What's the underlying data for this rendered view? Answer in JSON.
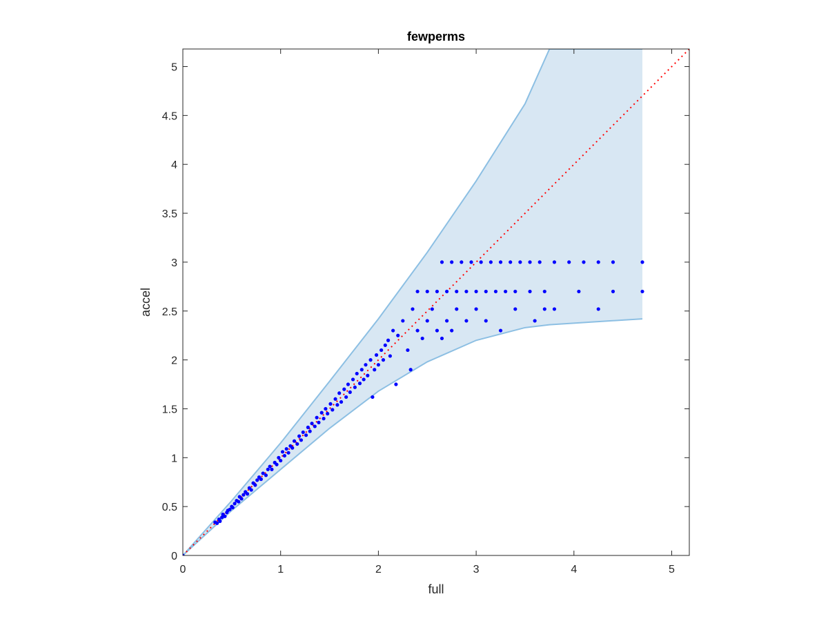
{
  "chart_data": {
    "type": "scatter",
    "title": "fewperms",
    "xlabel": "full",
    "ylabel": "accel",
    "xlim": [
      0,
      5.18
    ],
    "ylim": [
      0,
      5.18
    ],
    "xticks": [
      0,
      1,
      2,
      3,
      4,
      5
    ],
    "yticks": [
      0,
      0.5,
      1,
      1.5,
      2,
      2.5,
      3,
      3.5,
      4,
      4.5,
      5
    ],
    "xtick_labels": [
      "0",
      "1",
      "2",
      "3",
      "4",
      "5"
    ],
    "ytick_labels": [
      "0",
      "0.5",
      "1",
      "1.5",
      "2",
      "2.5",
      "3",
      "3.5",
      "4",
      "4.5",
      "5"
    ],
    "grid": false,
    "box": true,
    "colors": {
      "points": "#0000ff",
      "band_fill": "#d8e7f3",
      "band_edge": "#8cbfe3",
      "reference": "#ff0000",
      "axes": "#262626"
    },
    "reference_line": {
      "x": [
        0,
        5.18
      ],
      "y": [
        0,
        5.18
      ],
      "style": "dotted"
    },
    "band": {
      "x": [
        0,
        0.5,
        1,
        1.5,
        2,
        2.5,
        3,
        3.5,
        3.75,
        4.7
      ],
      "upper": [
        0,
        0.56,
        1.15,
        1.78,
        2.42,
        3.1,
        3.83,
        4.62,
        5.18,
        5.18
      ],
      "lower": [
        0,
        0.46,
        0.88,
        1.3,
        1.68,
        1.98,
        2.2,
        2.33,
        2.36,
        2.42
      ]
    },
    "series": [
      {
        "points": [
          [
            0,
            0
          ],
          [
            0.33,
            0.34
          ],
          [
            0.35,
            0.33
          ],
          [
            0.37,
            0.37
          ],
          [
            0.38,
            0.35
          ],
          [
            0.4,
            0.39
          ],
          [
            0.41,
            0.42
          ],
          [
            0.43,
            0.4
          ],
          [
            0.45,
            0.44
          ],
          [
            0.46,
            0.46
          ],
          [
            0.48,
            0.47
          ],
          [
            0.5,
            0.5
          ],
          [
            0.51,
            0.49
          ],
          [
            0.53,
            0.53
          ],
          [
            0.55,
            0.56
          ],
          [
            0.57,
            0.55
          ],
          [
            0.58,
            0.6
          ],
          [
            0.6,
            0.58
          ],
          [
            0.62,
            0.62
          ],
          [
            0.64,
            0.65
          ],
          [
            0.66,
            0.63
          ],
          [
            0.68,
            0.69
          ],
          [
            0.7,
            0.67
          ],
          [
            0.72,
            0.74
          ],
          [
            0.74,
            0.72
          ],
          [
            0.76,
            0.77
          ],
          [
            0.78,
            0.8
          ],
          [
            0.8,
            0.78
          ],
          [
            0.82,
            0.84
          ],
          [
            0.85,
            0.82
          ],
          [
            0.87,
            0.88
          ],
          [
            0.89,
            0.91
          ],
          [
            0.91,
            0.88
          ],
          [
            0.94,
            0.95
          ],
          [
            0.96,
            0.93
          ],
          [
            0.98,
            1.0
          ],
          [
            1.0,
            0.97
          ],
          [
            1.02,
            1.06
          ],
          [
            1.04,
            1.02
          ],
          [
            1.06,
            1.09
          ],
          [
            1.08,
            1.05
          ],
          [
            1.1,
            1.12
          ],
          [
            1.12,
            1.1
          ],
          [
            1.14,
            1.17
          ],
          [
            1.17,
            1.14
          ],
          [
            1.19,
            1.22
          ],
          [
            1.21,
            1.18
          ],
          [
            1.23,
            1.26
          ],
          [
            1.26,
            1.23
          ],
          [
            1.28,
            1.31
          ],
          [
            1.3,
            1.27
          ],
          [
            1.32,
            1.35
          ],
          [
            1.35,
            1.32
          ],
          [
            1.37,
            1.41
          ],
          [
            1.39,
            1.36
          ],
          [
            1.42,
            1.46
          ],
          [
            1.44,
            1.4
          ],
          [
            1.46,
            1.5
          ],
          [
            1.48,
            1.45
          ],
          [
            1.51,
            1.55
          ],
          [
            1.53,
            1.49
          ],
          [
            1.56,
            1.6
          ],
          [
            1.58,
            1.54
          ],
          [
            1.6,
            1.66
          ],
          [
            1.62,
            1.57
          ],
          [
            1.65,
            1.7
          ],
          [
            1.67,
            1.62
          ],
          [
            1.69,
            1.75
          ],
          [
            1.71,
            1.67
          ],
          [
            1.74,
            1.8
          ],
          [
            1.76,
            1.72
          ],
          [
            1.78,
            1.86
          ],
          [
            1.81,
            1.76
          ],
          [
            1.83,
            1.9
          ],
          [
            1.85,
            1.8
          ],
          [
            1.87,
            1.95
          ],
          [
            1.89,
            1.84
          ],
          [
            1.92,
            2.0
          ],
          [
            1.94,
            1.62
          ],
          [
            1.96,
            1.9
          ],
          [
            1.98,
            2.05
          ],
          [
            2.0,
            1.95
          ],
          [
            2.03,
            2.1
          ],
          [
            2.05,
            2.0
          ],
          [
            2.07,
            2.15
          ],
          [
            2.1,
            2.2
          ],
          [
            2.12,
            2.04
          ],
          [
            2.15,
            2.3
          ],
          [
            2.18,
            1.75
          ],
          [
            2.2,
            2.25
          ],
          [
            2.25,
            2.4
          ],
          [
            2.3,
            2.1
          ],
          [
            2.33,
            1.9
          ],
          [
            2.35,
            2.52
          ],
          [
            2.4,
            2.3
          ],
          [
            2.45,
            2.22
          ],
          [
            2.5,
            2.4
          ],
          [
            2.55,
            2.52
          ],
          [
            2.6,
            2.3
          ],
          [
            2.65,
            2.22
          ],
          [
            2.7,
            2.4
          ],
          [
            2.75,
            2.3
          ],
          [
            2.8,
            2.52
          ],
          [
            2.9,
            2.4
          ],
          [
            3.0,
            2.52
          ],
          [
            3.1,
            2.4
          ],
          [
            3.25,
            2.3
          ],
          [
            3.4,
            2.52
          ],
          [
            2.4,
            2.7
          ],
          [
            2.5,
            2.7
          ],
          [
            2.6,
            2.7
          ],
          [
            2.7,
            2.7
          ],
          [
            2.8,
            2.7
          ],
          [
            2.9,
            2.7
          ],
          [
            3.0,
            2.7
          ],
          [
            3.1,
            2.7
          ],
          [
            3.2,
            2.7
          ],
          [
            3.3,
            2.7
          ],
          [
            3.4,
            2.7
          ],
          [
            3.55,
            2.7
          ],
          [
            3.7,
            2.7
          ],
          [
            4.05,
            2.7
          ],
          [
            4.4,
            2.7
          ],
          [
            4.7,
            2.7
          ],
          [
            2.65,
            3.0
          ],
          [
            2.75,
            3.0
          ],
          [
            2.85,
            3.0
          ],
          [
            2.95,
            3.0
          ],
          [
            3.05,
            3.0
          ],
          [
            3.15,
            3.0
          ],
          [
            3.25,
            3.0
          ],
          [
            3.35,
            3.0
          ],
          [
            3.45,
            3.0
          ],
          [
            3.55,
            3.0
          ],
          [
            3.65,
            3.0
          ],
          [
            3.8,
            3.0
          ],
          [
            3.95,
            3.0
          ],
          [
            4.1,
            3.0
          ],
          [
            4.25,
            3.0
          ],
          [
            4.4,
            3.0
          ],
          [
            4.7,
            3.0
          ],
          [
            4.25,
            2.52
          ],
          [
            3.8,
            2.52
          ],
          [
            3.6,
            2.4
          ],
          [
            3.7,
            2.52
          ]
        ]
      }
    ]
  }
}
